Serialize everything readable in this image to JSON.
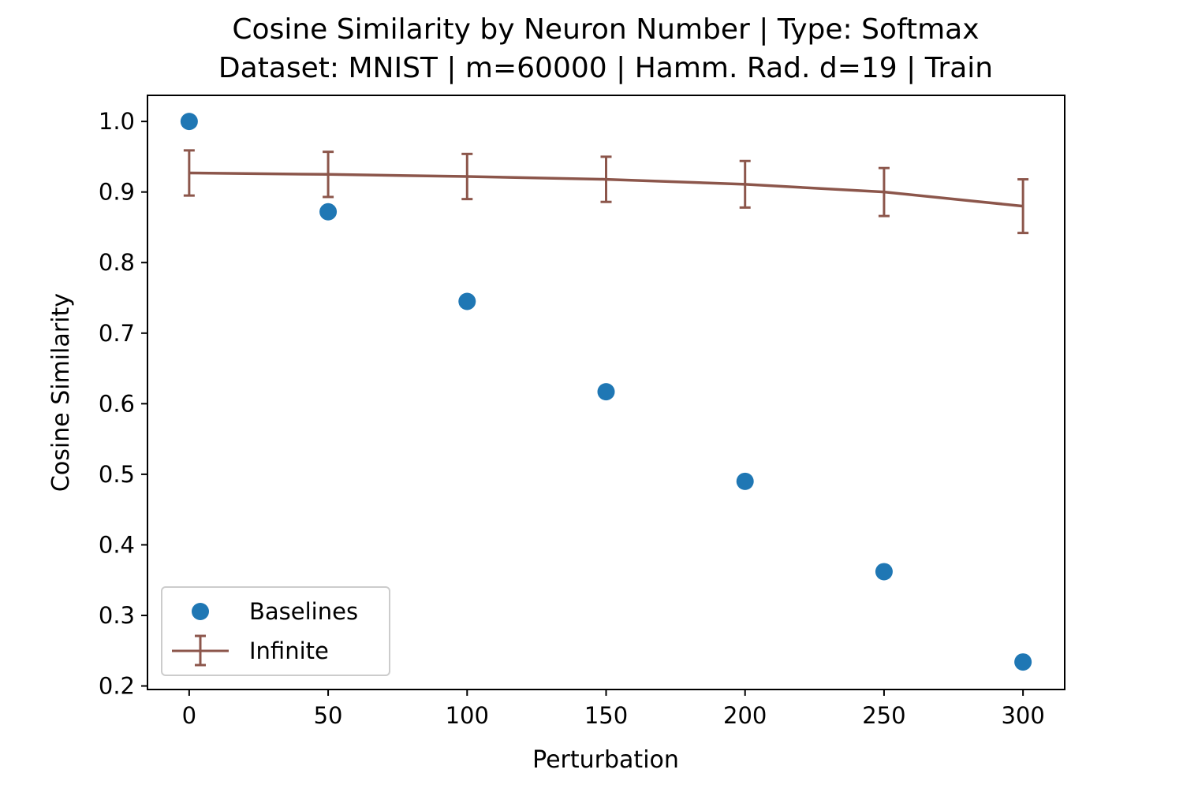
{
  "chart_data": {
    "type": "scatter",
    "title_lines": [
      "Cosine Similarity by Neuron Number | Type: Softmax",
      "Dataset: MNIST | m=60000 | Hamm. Rad. d=19 | Train"
    ],
    "xlabel": "Perturbation",
    "ylabel": "Cosine Similarity",
    "xlim": [
      -15,
      315
    ],
    "ylim": [
      0.195,
      1.037
    ],
    "x_ticks": [
      0,
      50,
      100,
      150,
      200,
      250,
      300
    ],
    "x_tick_labels": [
      "0",
      "50",
      "100",
      "150",
      "200",
      "250",
      "300"
    ],
    "y_ticks": [
      0.2,
      0.3,
      0.4,
      0.5,
      0.6,
      0.7,
      0.8,
      0.9,
      1.0
    ],
    "y_tick_labels": [
      "0.2",
      "0.3",
      "0.4",
      "0.5",
      "0.6",
      "0.7",
      "0.8",
      "0.9",
      "1.0"
    ],
    "grid": false,
    "legend_position": "lower-left",
    "series": [
      {
        "name": "Baselines",
        "kind": "scatter",
        "color": "#1f77b4",
        "x": [
          0,
          50,
          100,
          150,
          200,
          250,
          300
        ],
        "y": [
          1.0,
          0.872,
          0.745,
          0.617,
          0.49,
          0.362,
          0.234
        ]
      },
      {
        "name": "Infinite",
        "kind": "line_errorbar",
        "color": "#8c564b",
        "x": [
          0,
          50,
          100,
          150,
          200,
          250,
          300
        ],
        "y": [
          0.927,
          0.925,
          0.922,
          0.918,
          0.911,
          0.9,
          0.88
        ],
        "yerr": [
          0.032,
          0.032,
          0.032,
          0.032,
          0.033,
          0.034,
          0.038
        ]
      }
    ]
  }
}
